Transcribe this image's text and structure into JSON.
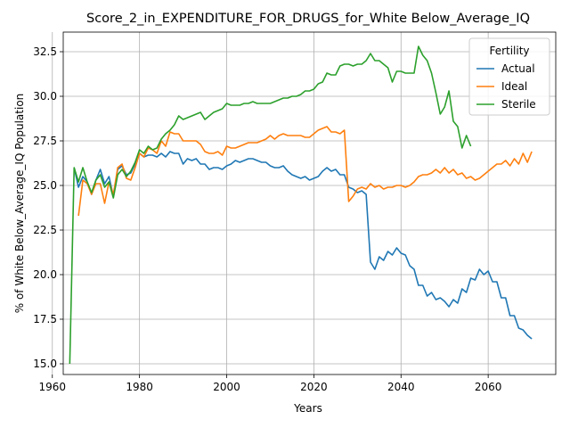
{
  "chart_data": {
    "type": "line",
    "title": "Score_2_in_EXPENDITURE_FOR_DRUGS_for_White Below_Average_IQ",
    "xlabel": "Years",
    "ylabel": "% of White Below_Average_IQ Population",
    "xlim": [
      1962.5,
      2075.5
    ],
    "ylim": [
      14.4,
      33.6
    ],
    "xticks": [
      1960,
      1980,
      2000,
      2020,
      2040,
      2060
    ],
    "yticks": [
      15.0,
      17.5,
      20.0,
      22.5,
      25.0,
      27.5,
      30.0,
      32.5
    ],
    "grid": true,
    "legend": {
      "title": "Fertility",
      "placement": "top-right"
    },
    "series": [
      {
        "name": "Actual",
        "color": "#1f77b4",
        "points": [
          [
            1965,
            26.0
          ],
          [
            1966,
            24.9
          ],
          [
            1967,
            25.5
          ],
          [
            1968,
            25.2
          ],
          [
            1969,
            24.5
          ],
          [
            1970,
            25.3
          ],
          [
            1971,
            25.9
          ],
          [
            1972,
            25.1
          ],
          [
            1973,
            25.5
          ],
          [
            1974,
            24.4
          ],
          [
            1975,
            25.9
          ],
          [
            1976,
            26.1
          ],
          [
            1977,
            25.6
          ],
          [
            1978,
            25.7
          ],
          [
            1979,
            26.2
          ],
          [
            1980,
            26.8
          ],
          [
            1981,
            26.6
          ],
          [
            1982,
            26.7
          ],
          [
            1983,
            26.7
          ],
          [
            1984,
            26.6
          ],
          [
            1985,
            26.8
          ],
          [
            1986,
            26.6
          ],
          [
            1987,
            26.9
          ],
          [
            1988,
            26.8
          ],
          [
            1989,
            26.8
          ],
          [
            1990,
            26.2
          ],
          [
            1991,
            26.5
          ],
          [
            1992,
            26.4
          ],
          [
            1993,
            26.5
          ],
          [
            1994,
            26.2
          ],
          [
            1995,
            26.2
          ],
          [
            1996,
            25.9
          ],
          [
            1997,
            26.0
          ],
          [
            1998,
            26.0
          ],
          [
            1999,
            25.9
          ],
          [
            2000,
            26.1
          ],
          [
            2001,
            26.2
          ],
          [
            2002,
            26.4
          ],
          [
            2003,
            26.3
          ],
          [
            2004,
            26.4
          ],
          [
            2005,
            26.5
          ],
          [
            2006,
            26.5
          ],
          [
            2007,
            26.4
          ],
          [
            2008,
            26.3
          ],
          [
            2009,
            26.3
          ],
          [
            2010,
            26.1
          ],
          [
            2011,
            26.0
          ],
          [
            2012,
            26.0
          ],
          [
            2013,
            26.1
          ],
          [
            2014,
            25.8
          ],
          [
            2015,
            25.6
          ],
          [
            2016,
            25.5
          ],
          [
            2017,
            25.4
          ],
          [
            2018,
            25.5
          ],
          [
            2019,
            25.3
          ],
          [
            2020,
            25.4
          ],
          [
            2021,
            25.5
          ],
          [
            2022,
            25.8
          ],
          [
            2023,
            26.0
          ],
          [
            2024,
            25.8
          ],
          [
            2025,
            25.9
          ],
          [
            2026,
            25.6
          ],
          [
            2027,
            25.6
          ],
          [
            2028,
            24.9
          ],
          [
            2029,
            24.8
          ],
          [
            2030,
            24.6
          ],
          [
            2031,
            24.7
          ],
          [
            2032,
            24.5
          ],
          [
            2033,
            20.7
          ],
          [
            2034,
            20.3
          ],
          [
            2035,
            21.0
          ],
          [
            2036,
            20.8
          ],
          [
            2037,
            21.3
          ],
          [
            2038,
            21.1
          ],
          [
            2039,
            21.5
          ],
          [
            2040,
            21.2
          ],
          [
            2041,
            21.1
          ],
          [
            2042,
            20.5
          ],
          [
            2043,
            20.3
          ],
          [
            2044,
            19.4
          ],
          [
            2045,
            19.4
          ],
          [
            2046,
            18.8
          ],
          [
            2047,
            19.0
          ],
          [
            2048,
            18.6
          ],
          [
            2049,
            18.7
          ],
          [
            2050,
            18.5
          ],
          [
            2051,
            18.2
          ],
          [
            2052,
            18.6
          ],
          [
            2053,
            18.4
          ],
          [
            2054,
            19.2
          ],
          [
            2055,
            19.0
          ],
          [
            2056,
            19.8
          ],
          [
            2057,
            19.7
          ],
          [
            2058,
            20.3
          ],
          [
            2059,
            20.0
          ],
          [
            2060,
            20.2
          ],
          [
            2061,
            19.6
          ],
          [
            2062,
            19.6
          ],
          [
            2063,
            18.7
          ],
          [
            2064,
            18.7
          ],
          [
            2065,
            17.7
          ],
          [
            2066,
            17.7
          ],
          [
            2067,
            17.0
          ],
          [
            2068,
            16.9
          ],
          [
            2069,
            16.6
          ],
          [
            2070,
            16.4
          ]
        ]
      },
      {
        "name": "Ideal",
        "color": "#ff7f0e",
        "points": [
          [
            1966,
            23.3
          ],
          [
            1967,
            25.3
          ],
          [
            1968,
            25.1
          ],
          [
            1969,
            24.5
          ],
          [
            1970,
            25.1
          ],
          [
            1971,
            25.1
          ],
          [
            1972,
            24.0
          ],
          [
            1973,
            25.2
          ],
          [
            1974,
            24.5
          ],
          [
            1975,
            26.0
          ],
          [
            1976,
            26.2
          ],
          [
            1977,
            25.4
          ],
          [
            1978,
            25.3
          ],
          [
            1979,
            26.0
          ],
          [
            1980,
            26.8
          ],
          [
            1981,
            26.6
          ],
          [
            1982,
            27.1
          ],
          [
            1983,
            27.0
          ],
          [
            1984,
            26.8
          ],
          [
            1985,
            27.5
          ],
          [
            1986,
            27.2
          ],
          [
            1987,
            28.0
          ],
          [
            1988,
            27.9
          ],
          [
            1989,
            27.9
          ],
          [
            1990,
            27.5
          ],
          [
            1991,
            27.5
          ],
          [
            1992,
            27.5
          ],
          [
            1993,
            27.5
          ],
          [
            1994,
            27.3
          ],
          [
            1995,
            26.9
          ],
          [
            1996,
            26.8
          ],
          [
            1997,
            26.8
          ],
          [
            1998,
            26.9
          ],
          [
            1999,
            26.7
          ],
          [
            2000,
            27.2
          ],
          [
            2001,
            27.1
          ],
          [
            2002,
            27.1
          ],
          [
            2003,
            27.2
          ],
          [
            2004,
            27.3
          ],
          [
            2005,
            27.4
          ],
          [
            2006,
            27.4
          ],
          [
            2007,
            27.4
          ],
          [
            2008,
            27.5
          ],
          [
            2009,
            27.6
          ],
          [
            2010,
            27.8
          ],
          [
            2011,
            27.6
          ],
          [
            2012,
            27.8
          ],
          [
            2013,
            27.9
          ],
          [
            2014,
            27.8
          ],
          [
            2015,
            27.8
          ],
          [
            2016,
            27.8
          ],
          [
            2017,
            27.8
          ],
          [
            2018,
            27.7
          ],
          [
            2019,
            27.7
          ],
          [
            2020,
            27.9
          ],
          [
            2021,
            28.1
          ],
          [
            2022,
            28.2
          ],
          [
            2023,
            28.3
          ],
          [
            2024,
            28.0
          ],
          [
            2025,
            28.0
          ],
          [
            2026,
            27.9
          ],
          [
            2027,
            28.1
          ],
          [
            2028,
            24.1
          ],
          [
            2029,
            24.4
          ],
          [
            2030,
            24.8
          ],
          [
            2031,
            24.9
          ],
          [
            2032,
            24.8
          ],
          [
            2033,
            25.1
          ],
          [
            2034,
            24.9
          ],
          [
            2035,
            25.0
          ],
          [
            2036,
            24.8
          ],
          [
            2037,
            24.9
          ],
          [
            2038,
            24.9
          ],
          [
            2039,
            25.0
          ],
          [
            2040,
            25.0
          ],
          [
            2041,
            24.9
          ],
          [
            2042,
            25.0
          ],
          [
            2043,
            25.2
          ],
          [
            2044,
            25.5
          ],
          [
            2045,
            25.6
          ],
          [
            2046,
            25.6
          ],
          [
            2047,
            25.7
          ],
          [
            2048,
            25.9
          ],
          [
            2049,
            25.7
          ],
          [
            2050,
            26.0
          ],
          [
            2051,
            25.7
          ],
          [
            2052,
            25.9
          ],
          [
            2053,
            25.6
          ],
          [
            2054,
            25.7
          ],
          [
            2055,
            25.4
          ],
          [
            2056,
            25.5
          ],
          [
            2057,
            25.3
          ],
          [
            2058,
            25.4
          ],
          [
            2059,
            25.6
          ],
          [
            2060,
            25.8
          ],
          [
            2061,
            26.0
          ],
          [
            2062,
            26.2
          ],
          [
            2063,
            26.2
          ],
          [
            2064,
            26.4
          ],
          [
            2065,
            26.1
          ],
          [
            2066,
            26.5
          ],
          [
            2067,
            26.2
          ],
          [
            2068,
            26.8
          ],
          [
            2069,
            26.3
          ],
          [
            2070,
            26.9
          ]
        ]
      },
      {
        "name": "Sterile",
        "color": "#2ca02c",
        "points": [
          [
            1964,
            15.0
          ],
          [
            1965,
            26.0
          ],
          [
            1966,
            25.2
          ],
          [
            1967,
            26.0
          ],
          [
            1968,
            25.2
          ],
          [
            1969,
            24.6
          ],
          [
            1970,
            25.3
          ],
          [
            1971,
            25.6
          ],
          [
            1972,
            24.9
          ],
          [
            1973,
            25.2
          ],
          [
            1974,
            24.3
          ],
          [
            1975,
            25.6
          ],
          [
            1976,
            25.9
          ],
          [
            1977,
            25.5
          ],
          [
            1978,
            25.8
          ],
          [
            1979,
            26.3
          ],
          [
            1980,
            27.0
          ],
          [
            1981,
            26.8
          ],
          [
            1982,
            27.2
          ],
          [
            1983,
            27.0
          ],
          [
            1984,
            27.1
          ],
          [
            1985,
            27.6
          ],
          [
            1986,
            27.9
          ],
          [
            1987,
            28.1
          ],
          [
            1988,
            28.4
          ],
          [
            1989,
            28.9
          ],
          [
            1990,
            28.7
          ],
          [
            1991,
            28.8
          ],
          [
            1992,
            28.9
          ],
          [
            1993,
            29.0
          ],
          [
            1994,
            29.1
          ],
          [
            1995,
            28.7
          ],
          [
            1996,
            28.9
          ],
          [
            1997,
            29.1
          ],
          [
            1998,
            29.2
          ],
          [
            1999,
            29.3
          ],
          [
            2000,
            29.6
          ],
          [
            2001,
            29.5
          ],
          [
            2002,
            29.5
          ],
          [
            2003,
            29.5
          ],
          [
            2004,
            29.6
          ],
          [
            2005,
            29.6
          ],
          [
            2006,
            29.7
          ],
          [
            2007,
            29.6
          ],
          [
            2008,
            29.6
          ],
          [
            2009,
            29.6
          ],
          [
            2010,
            29.6
          ],
          [
            2011,
            29.7
          ],
          [
            2012,
            29.8
          ],
          [
            2013,
            29.9
          ],
          [
            2014,
            29.9
          ],
          [
            2015,
            30.0
          ],
          [
            2016,
            30.0
          ],
          [
            2017,
            30.1
          ],
          [
            2018,
            30.3
          ],
          [
            2019,
            30.3
          ],
          [
            2020,
            30.4
          ],
          [
            2021,
            30.7
          ],
          [
            2022,
            30.8
          ],
          [
            2023,
            31.3
          ],
          [
            2024,
            31.2
          ],
          [
            2025,
            31.2
          ],
          [
            2026,
            31.7
          ],
          [
            2027,
            31.8
          ],
          [
            2028,
            31.8
          ],
          [
            2029,
            31.7
          ],
          [
            2030,
            31.8
          ],
          [
            2031,
            31.8
          ],
          [
            2032,
            32.0
          ],
          [
            2033,
            32.4
          ],
          [
            2034,
            32.0
          ],
          [
            2035,
            32.0
          ],
          [
            2036,
            31.8
          ],
          [
            2037,
            31.6
          ],
          [
            2038,
            30.8
          ],
          [
            2039,
            31.4
          ],
          [
            2040,
            31.4
          ],
          [
            2041,
            31.3
          ],
          [
            2042,
            31.3
          ],
          [
            2043,
            31.3
          ],
          [
            2044,
            32.8
          ],
          [
            2045,
            32.3
          ],
          [
            2046,
            32.0
          ],
          [
            2047,
            31.3
          ],
          [
            2048,
            30.2
          ],
          [
            2049,
            29.0
          ],
          [
            2050,
            29.4
          ],
          [
            2051,
            30.3
          ],
          [
            2052,
            28.6
          ],
          [
            2053,
            28.3
          ],
          [
            2054,
            27.1
          ],
          [
            2055,
            27.8
          ],
          [
            2056,
            27.2
          ]
        ]
      }
    ]
  }
}
